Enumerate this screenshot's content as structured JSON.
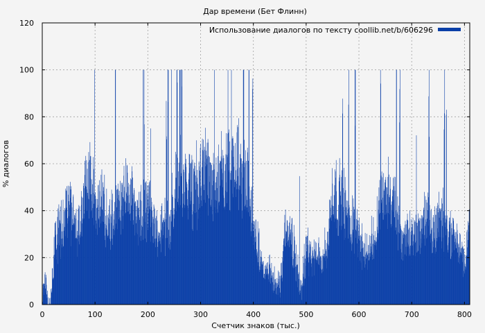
{
  "chart_data": {
    "type": "bar",
    "title": "Дар времени (Бет Флинн)",
    "xlabel": "Счетчик знаков (тыс.)",
    "ylabel": "% диалогов",
    "xlim": [
      0,
      810
    ],
    "ylim": [
      0,
      120
    ],
    "xticks": [
      0,
      100,
      200,
      300,
      400,
      500,
      600,
      700,
      800
    ],
    "yticks": [
      0,
      20,
      40,
      60,
      80,
      100,
      120
    ],
    "grid": true,
    "legend_position": "top-right",
    "series": [
      {
        "name": "Использование диалогов по тексту coollib.net/b/606296",
        "color": "#0a3fa8",
        "profile": [
          {
            "x": 0,
            "y": 3
          },
          {
            "x": 5,
            "y": 10
          },
          {
            "x": 10,
            "y": 2
          },
          {
            "x": 15,
            "y": 0
          },
          {
            "x": 20,
            "y": 15
          },
          {
            "x": 25,
            "y": 30
          },
          {
            "x": 30,
            "y": 30
          },
          {
            "x": 40,
            "y": 35
          },
          {
            "x": 50,
            "y": 45
          },
          {
            "x": 60,
            "y": 38
          },
          {
            "x": 70,
            "y": 30
          },
          {
            "x": 80,
            "y": 45
          },
          {
            "x": 90,
            "y": 55
          },
          {
            "x": 100,
            "y": 40
          },
          {
            "x": 110,
            "y": 45
          },
          {
            "x": 120,
            "y": 38
          },
          {
            "x": 130,
            "y": 35
          },
          {
            "x": 140,
            "y": 42
          },
          {
            "x": 150,
            "y": 40
          },
          {
            "x": 160,
            "y": 50
          },
          {
            "x": 170,
            "y": 45
          },
          {
            "x": 180,
            "y": 35
          },
          {
            "x": 190,
            "y": 40
          },
          {
            "x": 200,
            "y": 45
          },
          {
            "x": 210,
            "y": 35
          },
          {
            "x": 220,
            "y": 30
          },
          {
            "x": 230,
            "y": 35
          },
          {
            "x": 240,
            "y": 30
          },
          {
            "x": 250,
            "y": 50
          },
          {
            "x": 260,
            "y": 55
          },
          {
            "x": 270,
            "y": 50
          },
          {
            "x": 280,
            "y": 50
          },
          {
            "x": 290,
            "y": 50
          },
          {
            "x": 300,
            "y": 55
          },
          {
            "x": 310,
            "y": 55
          },
          {
            "x": 320,
            "y": 50
          },
          {
            "x": 330,
            "y": 55
          },
          {
            "x": 340,
            "y": 55
          },
          {
            "x": 350,
            "y": 60
          },
          {
            "x": 360,
            "y": 55
          },
          {
            "x": 370,
            "y": 60
          },
          {
            "x": 380,
            "y": 55
          },
          {
            "x": 390,
            "y": 50
          },
          {
            "x": 400,
            "y": 35
          },
          {
            "x": 410,
            "y": 25
          },
          {
            "x": 420,
            "y": 12
          },
          {
            "x": 430,
            "y": 15
          },
          {
            "x": 440,
            "y": 10
          },
          {
            "x": 450,
            "y": 8
          },
          {
            "x": 460,
            "y": 30
          },
          {
            "x": 470,
            "y": 30
          },
          {
            "x": 480,
            "y": 20
          },
          {
            "x": 490,
            "y": 5
          },
          {
            "x": 500,
            "y": 25
          },
          {
            "x": 510,
            "y": 20
          },
          {
            "x": 520,
            "y": 20
          },
          {
            "x": 530,
            "y": 20
          },
          {
            "x": 540,
            "y": 25
          },
          {
            "x": 550,
            "y": 50
          },
          {
            "x": 560,
            "y": 45
          },
          {
            "x": 570,
            "y": 45
          },
          {
            "x": 580,
            "y": 35
          },
          {
            "x": 590,
            "y": 35
          },
          {
            "x": 600,
            "y": 30
          },
          {
            "x": 610,
            "y": 20
          },
          {
            "x": 620,
            "y": 25
          },
          {
            "x": 630,
            "y": 30
          },
          {
            "x": 640,
            "y": 45
          },
          {
            "x": 650,
            "y": 50
          },
          {
            "x": 660,
            "y": 45
          },
          {
            "x": 670,
            "y": 40
          },
          {
            "x": 680,
            "y": 25
          },
          {
            "x": 690,
            "y": 30
          },
          {
            "x": 700,
            "y": 30
          },
          {
            "x": 710,
            "y": 30
          },
          {
            "x": 720,
            "y": 35
          },
          {
            "x": 730,
            "y": 35
          },
          {
            "x": 740,
            "y": 30
          },
          {
            "x": 750,
            "y": 40
          },
          {
            "x": 760,
            "y": 35
          },
          {
            "x": 770,
            "y": 30
          },
          {
            "x": 780,
            "y": 30
          },
          {
            "x": 790,
            "y": 25
          },
          {
            "x": 800,
            "y": 15
          },
          {
            "x": 810,
            "y": 40
          }
        ]
      }
    ]
  }
}
